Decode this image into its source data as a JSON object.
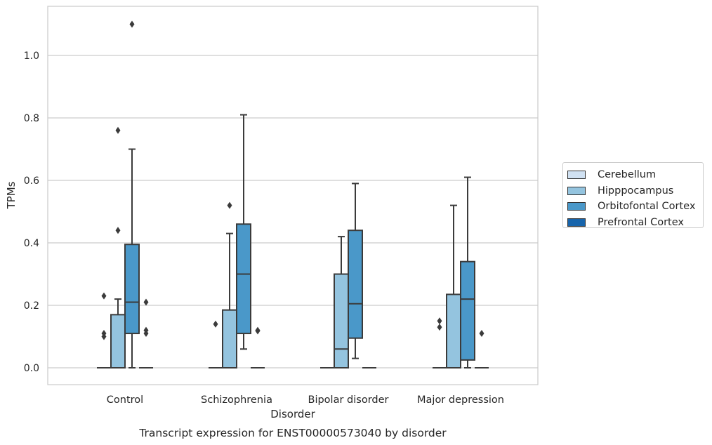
{
  "chart_data": {
    "type": "box",
    "title": "Transcript expression for ENST00000573040 by disorder",
    "xlabel": "Disorder",
    "ylabel": "TPMs",
    "ylim": [
      -0.055,
      1.165
    ],
    "yticks": [
      "0.0",
      "0.2",
      "0.4",
      "0.6",
      "0.8",
      "1.0"
    ],
    "categories": [
      "Control",
      "Schizophrenia",
      "Bipolar disorder",
      "Major depression"
    ],
    "grid": "horizontal",
    "legend_position": "right",
    "series": [
      {
        "name": "Cerebellum",
        "color": "#d0e1f2",
        "boxes": [
          {
            "min": 0,
            "q1": 0,
            "median": 0,
            "q3": 0,
            "max": 0,
            "outliers": [
              0.23,
              0.11,
              0.1
            ]
          },
          {
            "min": 0,
            "q1": 0,
            "median": 0,
            "q3": 0,
            "max": 0,
            "outliers": [
              0.14
            ]
          },
          {
            "min": 0,
            "q1": 0,
            "median": 0,
            "q3": 0,
            "max": 0,
            "outliers": []
          },
          {
            "min": 0,
            "q1": 0,
            "median": 0,
            "q3": 0,
            "max": 0,
            "outliers": [
              0.15,
              0.13
            ]
          }
        ]
      },
      {
        "name": "Hipppocampus",
        "color": "#94c4df",
        "boxes": [
          {
            "min": 0,
            "q1": 0,
            "median": 0,
            "q3": 0.17,
            "max": 0.22,
            "outliers": [
              0.76,
              0.44
            ]
          },
          {
            "min": 0,
            "q1": 0,
            "median": 0,
            "q3": 0.185,
            "max": 0.43,
            "outliers": [
              0.52
            ]
          },
          {
            "min": 0,
            "q1": 0,
            "median": 0.06,
            "q3": 0.3,
            "max": 0.42,
            "outliers": []
          },
          {
            "min": 0,
            "q1": 0,
            "median": 0,
            "q3": 0.235,
            "max": 0.52,
            "outliers": []
          }
        ]
      },
      {
        "name": "Orbitofontal Cortex",
        "color": "#4a98c9",
        "boxes": [
          {
            "min": 0,
            "q1": 0.11,
            "median": 0.21,
            "q3": 0.395,
            "max": 0.7,
            "outliers": [
              1.1
            ]
          },
          {
            "min": 0.06,
            "q1": 0.11,
            "median": 0.3,
            "q3": 0.46,
            "max": 0.81,
            "outliers": []
          },
          {
            "min": 0.03,
            "q1": 0.095,
            "median": 0.205,
            "q3": 0.44,
            "max": 0.59,
            "outliers": []
          },
          {
            "min": 0,
            "q1": 0.025,
            "median": 0.22,
            "q3": 0.34,
            "max": 0.61,
            "outliers": []
          }
        ]
      },
      {
        "name": "Prefrontal Cortex",
        "color": "#1764ab",
        "boxes": [
          {
            "min": 0,
            "q1": 0,
            "median": 0,
            "q3": 0,
            "max": 0,
            "outliers": [
              0.21,
              0.12,
              0.11
            ]
          },
          {
            "min": 0,
            "q1": 0,
            "median": 0,
            "q3": 0,
            "max": 0,
            "outliers": [
              0.12,
              0.118
            ]
          },
          {
            "min": 0,
            "q1": 0,
            "median": 0,
            "q3": 0,
            "max": 0,
            "outliers": []
          },
          {
            "min": 0,
            "q1": 0,
            "median": 0,
            "q3": 0,
            "max": 0,
            "outliers": [
              0.11
            ]
          }
        ]
      }
    ]
  }
}
